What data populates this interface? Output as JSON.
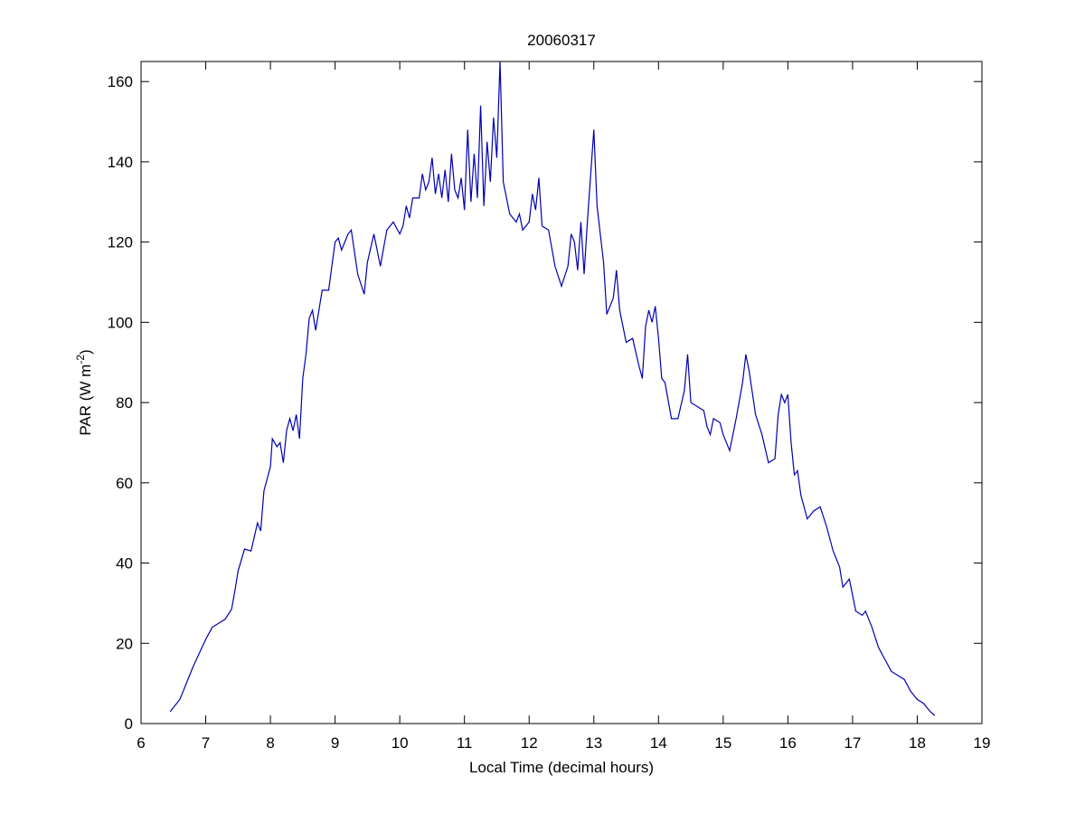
{
  "chart_data": {
    "type": "line",
    "title": "20060317",
    "x_label": "Local Time (decimal hours)",
    "y_label": {
      "base": "PAR (W m",
      "superscript": "-2",
      "suffix": ")"
    },
    "xlim": [
      6,
      19
    ],
    "ylim": [
      0,
      165
    ],
    "xticks": [
      6,
      7,
      8,
      9,
      10,
      11,
      12,
      13,
      14,
      15,
      16,
      17,
      18,
      19
    ],
    "yticks": [
      0,
      20,
      40,
      60,
      80,
      100,
      120,
      140,
      160
    ],
    "grid": false,
    "x": [
      6.45,
      6.6,
      6.7,
      6.8,
      6.9,
      7.0,
      7.1,
      7.2,
      7.3,
      7.4,
      7.45,
      7.5,
      7.6,
      7.7,
      7.8,
      7.85,
      7.9,
      8.0,
      8.03,
      8.1,
      8.15,
      8.2,
      8.25,
      8.3,
      8.35,
      8.4,
      8.45,
      8.5,
      8.55,
      8.6,
      8.65,
      8.7,
      8.8,
      8.9,
      8.95,
      9.0,
      9.05,
      9.1,
      9.2,
      9.25,
      9.35,
      9.45,
      9.5,
      9.6,
      9.7,
      9.8,
      9.9,
      10.0,
      10.05,
      10.1,
      10.15,
      10.2,
      10.3,
      10.35,
      10.4,
      10.45,
      10.5,
      10.55,
      10.6,
      10.65,
      10.7,
      10.75,
      10.8,
      10.85,
      10.9,
      10.95,
      11.0,
      11.05,
      11.1,
      11.15,
      11.2,
      11.25,
      11.3,
      11.35,
      11.4,
      11.45,
      11.5,
      11.55,
      11.6,
      11.7,
      11.8,
      11.85,
      11.9,
      12.0,
      12.05,
      12.1,
      12.15,
      12.2,
      12.3,
      12.4,
      12.5,
      12.6,
      12.65,
      12.7,
      12.75,
      12.8,
      12.85,
      12.9,
      13.0,
      13.05,
      13.1,
      13.15,
      13.2,
      13.3,
      13.35,
      13.4,
      13.5,
      13.6,
      13.7,
      13.75,
      13.8,
      13.85,
      13.9,
      13.95,
      14.0,
      14.05,
      14.1,
      14.2,
      14.3,
      14.4,
      14.45,
      14.5,
      14.6,
      14.7,
      14.75,
      14.8,
      14.85,
      14.95,
      15.0,
      15.1,
      15.2,
      15.3,
      15.35,
      15.4,
      15.5,
      15.6,
      15.7,
      15.8,
      15.85,
      15.9,
      15.95,
      16.0,
      16.05,
      16.1,
      16.15,
      16.2,
      16.3,
      16.4,
      16.5,
      16.6,
      16.7,
      16.8,
      16.85,
      16.95,
      17.05,
      17.15,
      17.2,
      17.3,
      17.4,
      17.5,
      17.6,
      17.7,
      17.8,
      17.9,
      18.0,
      18.1,
      18.2,
      18.27
    ],
    "series": [
      {
        "color": "#0000b0",
        "values": [
          3,
          6,
          10,
          14,
          17.5,
          21,
          24,
          25,
          26,
          28.5,
          33,
          38,
          43.5,
          43,
          50,
          48,
          58,
          64,
          71,
          69,
          70,
          65,
          73,
          76,
          73,
          77,
          71,
          86,
          92,
          101,
          103,
          98,
          108,
          108,
          114,
          120,
          121,
          118,
          122,
          123,
          112,
          107,
          115,
          122,
          114,
          123,
          125,
          122,
          124,
          129,
          126,
          131,
          131,
          137,
          133,
          135,
          141,
          132,
          137,
          131,
          138,
          130,
          142,
          133,
          131,
          136,
          128,
          148,
          130,
          142,
          131,
          154,
          129,
          145,
          135,
          151,
          141,
          165,
          135,
          127,
          125,
          127,
          123,
          125,
          132,
          128,
          136,
          124,
          123,
          114,
          109,
          114,
          122,
          120,
          113,
          125,
          112,
          125,
          148,
          129,
          122,
          115,
          102,
          106,
          113,
          103,
          95,
          96,
          89,
          86,
          99,
          103,
          100,
          104,
          96,
          86,
          85,
          76,
          76,
          83,
          92,
          80,
          79,
          78,
          74,
          72,
          76,
          75,
          72,
          68,
          76,
          85,
          92,
          88,
          77,
          72,
          65,
          66,
          77,
          82,
          80,
          82,
          70,
          62,
          63,
          57,
          51,
          53,
          54,
          49,
          43,
          39,
          34,
          36,
          28,
          27,
          28,
          24,
          19,
          16,
          13,
          12,
          11,
          8,
          6,
          5,
          3,
          2
        ]
      }
    ]
  }
}
